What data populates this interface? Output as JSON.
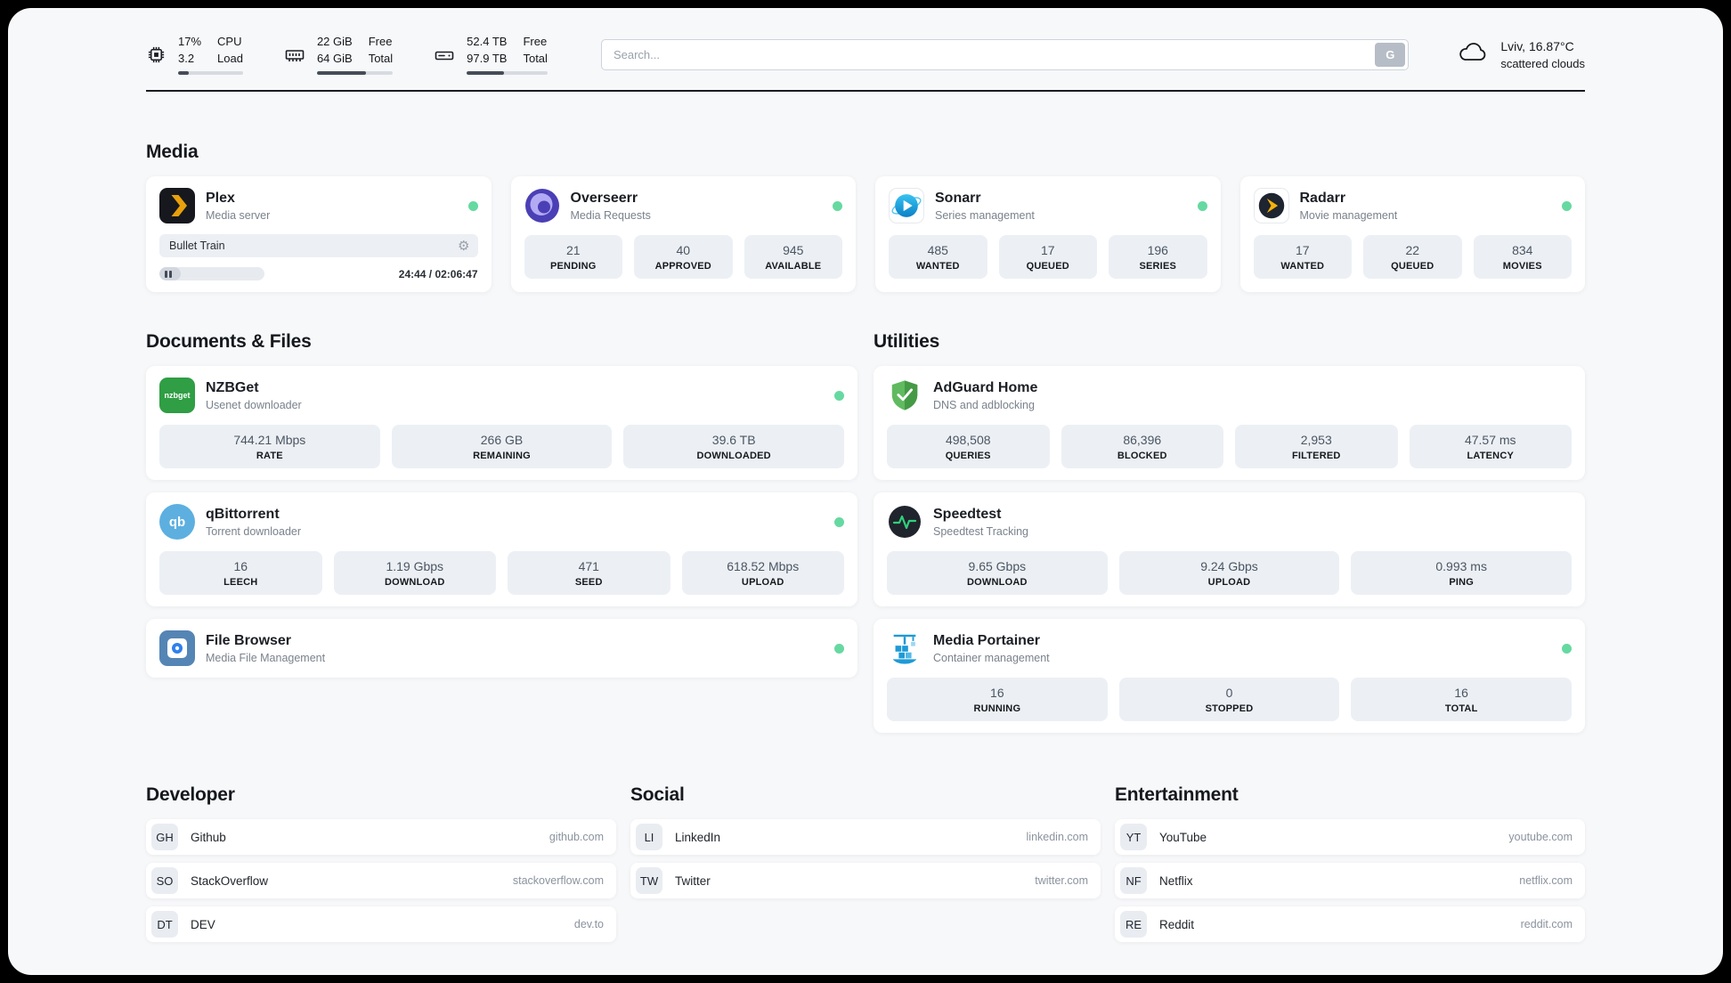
{
  "topbar": {
    "cpu": {
      "value_top": "17%",
      "value_bottom": "3.2",
      "label_top": "CPU",
      "label_bottom": "Load",
      "progress": 17
    },
    "ram": {
      "value_top": "22 GiB",
      "value_bottom": "64 GiB",
      "label_top": "Free",
      "label_bottom": "Total",
      "progress": 65
    },
    "disk": {
      "value_top": "52.4 TB",
      "value_bottom": "97.9 TB",
      "label_top": "Free",
      "label_bottom": "Total",
      "progress": 46
    },
    "search": {
      "placeholder": "Search...",
      "button_label": "G"
    },
    "weather": {
      "location": "Lviv, 16.87°C",
      "condition": "scattered clouds"
    }
  },
  "sections": {
    "media": {
      "title": "Media",
      "plex": {
        "name": "Plex",
        "subtitle": "Media server",
        "now_playing": "Bullet Train",
        "time": "24:44 / 02:06:47",
        "progress": 20,
        "icon_text": ""
      },
      "overseerr": {
        "name": "Overseerr",
        "subtitle": "Media Requests",
        "stats": [
          {
            "value": "21",
            "label": "PENDING"
          },
          {
            "value": "40",
            "label": "APPROVED"
          },
          {
            "value": "945",
            "label": "AVAILABLE"
          }
        ]
      },
      "sonarr": {
        "name": "Sonarr",
        "subtitle": "Series management",
        "stats": [
          {
            "value": "485",
            "label": "WANTED"
          },
          {
            "value": "17",
            "label": "QUEUED"
          },
          {
            "value": "196",
            "label": "SERIES"
          }
        ]
      },
      "radarr": {
        "name": "Radarr",
        "subtitle": "Movie management",
        "stats": [
          {
            "value": "17",
            "label": "WANTED"
          },
          {
            "value": "22",
            "label": "QUEUED"
          },
          {
            "value": "834",
            "label": "MOVIES"
          }
        ]
      }
    },
    "documents": {
      "title": "Documents & Files",
      "nzbget": {
        "name": "NZBGet",
        "subtitle": "Usenet downloader",
        "icon_text": "nzbget",
        "stats": [
          {
            "value": "744.21 Mbps",
            "label": "RATE"
          },
          {
            "value": "266 GB",
            "label": "REMAINING"
          },
          {
            "value": "39.6 TB",
            "label": "DOWNLOADED"
          }
        ]
      },
      "qbittorrent": {
        "name": "qBittorrent",
        "subtitle": "Torrent downloader",
        "icon_text": "qb",
        "stats": [
          {
            "value": "16",
            "label": "LEECH"
          },
          {
            "value": "1.19 Gbps",
            "label": "DOWNLOAD"
          },
          {
            "value": "471",
            "label": "SEED"
          },
          {
            "value": "618.52 Mbps",
            "label": "UPLOAD"
          }
        ]
      },
      "filebrowser": {
        "name": "File Browser",
        "subtitle": "Media File Management"
      }
    },
    "utilities": {
      "title": "Utilities",
      "adguard": {
        "name": "AdGuard Home",
        "subtitle": "DNS and adblocking",
        "stats": [
          {
            "value": "498,508",
            "label": "QUERIES"
          },
          {
            "value": "86,396",
            "label": "BLOCKED"
          },
          {
            "value": "2,953",
            "label": "FILTERED"
          },
          {
            "value": "47.57 ms",
            "label": "LATENCY"
          }
        ]
      },
      "speedtest": {
        "name": "Speedtest",
        "subtitle": "Speedtest Tracking",
        "stats": [
          {
            "value": "9.65 Gbps",
            "label": "DOWNLOAD"
          },
          {
            "value": "9.24 Gbps",
            "label": "UPLOAD"
          },
          {
            "value": "0.993 ms",
            "label": "PING"
          }
        ]
      },
      "portainer": {
        "name": "Media Portainer",
        "subtitle": "Container management",
        "stats": [
          {
            "value": "16",
            "label": "RUNNING"
          },
          {
            "value": "0",
            "label": "STOPPED"
          },
          {
            "value": "16",
            "label": "TOTAL"
          }
        ]
      }
    },
    "bookmarks": [
      {
        "title": "Developer",
        "links": [
          {
            "abbr": "GH",
            "name": "Github",
            "url": "github.com"
          },
          {
            "abbr": "SO",
            "name": "StackOverflow",
            "url": "stackoverflow.com"
          },
          {
            "abbr": "DT",
            "name": "DEV",
            "url": "dev.to"
          }
        ]
      },
      {
        "title": "Social",
        "links": [
          {
            "abbr": "LI",
            "name": "LinkedIn",
            "url": "linkedin.com"
          },
          {
            "abbr": "TW",
            "name": "Twitter",
            "url": "twitter.com"
          }
        ]
      },
      {
        "title": "Entertainment",
        "links": [
          {
            "abbr": "YT",
            "name": "YouTube",
            "url": "youtube.com"
          },
          {
            "abbr": "NF",
            "name": "Netflix",
            "url": "netflix.com"
          },
          {
            "abbr": "RE",
            "name": "Reddit",
            "url": "reddit.com"
          }
        ]
      }
    ]
  },
  "colors": {
    "status_online": "#66d9a1"
  }
}
